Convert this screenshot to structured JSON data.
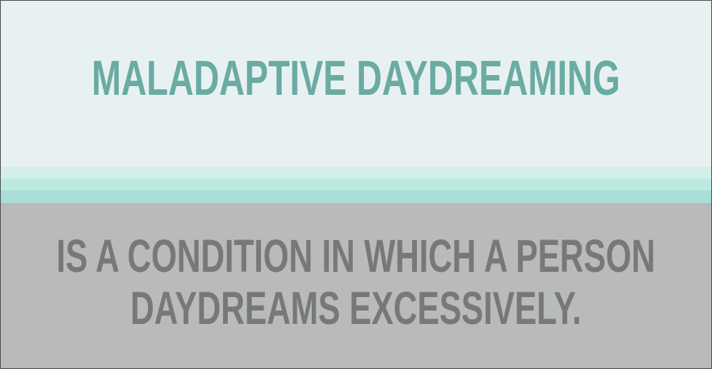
{
  "heading": {
    "title": "MALADAPTIVE DAYDREAMING"
  },
  "definition": {
    "line1": "IS A CONDITION IN WHICH A PERSON",
    "line2": "DAYDREAMS EXCESSIVELY."
  },
  "colors": {
    "title": "#6aaba3",
    "top_background": "#e8f1f1",
    "stripe_light": "#d4efe9",
    "stripe_mid": "#bdeae0",
    "stripe_dark": "#a8ddd8",
    "bottom_background": "#b8babb",
    "body_text": "#777879"
  }
}
